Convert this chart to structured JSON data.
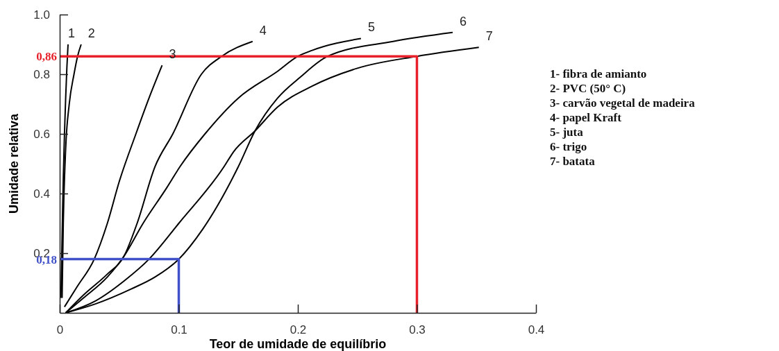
{
  "chart_data": {
    "type": "line",
    "xlabel": "Teor de umidade de equilíbrio",
    "ylabel": "Umidade relativa",
    "xlim": [
      0,
      0.4
    ],
    "xticks": [
      0,
      0.1,
      0.2,
      0.3,
      0.4
    ],
    "ylim": [
      0,
      1.0
    ],
    "yticks": [
      0.2,
      0.4,
      0.6,
      0.8,
      {
        "value": 1.0,
        "label": "1.0"
      }
    ],
    "grid": false,
    "marker": "none",
    "line_style": "solid",
    "series": [
      {
        "name": "1",
        "color": "#000000",
        "x": [
          0.001,
          0.002,
          0.003,
          0.004,
          0.005,
          0.006,
          0.007
        ],
        "values": [
          0.05,
          0.25,
          0.45,
          0.6,
          0.72,
          0.82,
          0.9
        ]
      },
      {
        "name": "2",
        "color": "#000000",
        "x": [
          0.002,
          0.003,
          0.005,
          0.008,
          0.012,
          0.015,
          0.018
        ],
        "values": [
          0.05,
          0.3,
          0.55,
          0.7,
          0.8,
          0.86,
          0.9
        ]
      },
      {
        "name": "3",
        "color": "#000000",
        "x": [
          0.004,
          0.015,
          0.029,
          0.04,
          0.05,
          0.064,
          0.075,
          0.086
        ],
        "values": [
          0.02,
          0.09,
          0.18,
          0.3,
          0.44,
          0.6,
          0.72,
          0.83
        ]
      },
      {
        "name": "4",
        "color": "#000000",
        "x": [
          0.005,
          0.02,
          0.04,
          0.054,
          0.065,
          0.08,
          0.095,
          0.119,
          0.136,
          0.162
        ],
        "values": [
          0,
          0.06,
          0.13,
          0.19,
          0.3,
          0.49,
          0.6,
          0.8,
          0.86,
          0.91
        ]
      },
      {
        "name": "5",
        "color": "#000000",
        "x": [
          0.005,
          0.02,
          0.04,
          0.054,
          0.07,
          0.09,
          0.101,
          0.122,
          0.15,
          0.183,
          0.2,
          0.212,
          0.253
        ],
        "values": [
          0,
          0.05,
          0.12,
          0.19,
          0.3,
          0.42,
          0.49,
          0.6,
          0.72,
          0.81,
          0.86,
          0.88,
          0.92
        ]
      },
      {
        "name": "6",
        "color": "#000000",
        "x": [
          0.005,
          0.03,
          0.06,
          0.08,
          0.1,
          0.12,
          0.15,
          0.164,
          0.183,
          0.202,
          0.225,
          0.28,
          0.33
        ],
        "values": [
          0,
          0.03,
          0.08,
          0.12,
          0.18,
          0.28,
          0.49,
          0.61,
          0.72,
          0.79,
          0.86,
          0.91,
          0.94
        ]
      },
      {
        "name": "7",
        "color": "#000000",
        "x": [
          0.005,
          0.03,
          0.055,
          0.075,
          0.1,
          0.138,
          0.146,
          0.164,
          0.183,
          0.212,
          0.25,
          0.3,
          0.352
        ],
        "values": [
          0,
          0.04,
          0.11,
          0.18,
          0.3,
          0.49,
          0.54,
          0.61,
          0.69,
          0.76,
          0.82,
          0.86,
          0.89
        ]
      },
      {
        "color": "#e8202a",
        "x": [
          0,
          0.3,
          0.3
        ],
        "values": [
          0.86,
          0.86,
          0
        ]
      },
      {
        "color": "#4050c8",
        "x": [
          0,
          0.1,
          0.1
        ],
        "values": [
          0.18,
          0.18,
          0
        ]
      }
    ],
    "annotations": [
      "1- fibra de amianto",
      "2- PVC (50° C)",
      "3- carvão vegetal de madeira",
      "4- papel Kraft",
      "5- juta",
      "6- trigo",
      "7- batata",
      {
        "text": "0,86",
        "x": 0,
        "y": 0.86
      },
      {
        "text": "0,18",
        "x": 0,
        "y": 0.18
      }
    ]
  }
}
